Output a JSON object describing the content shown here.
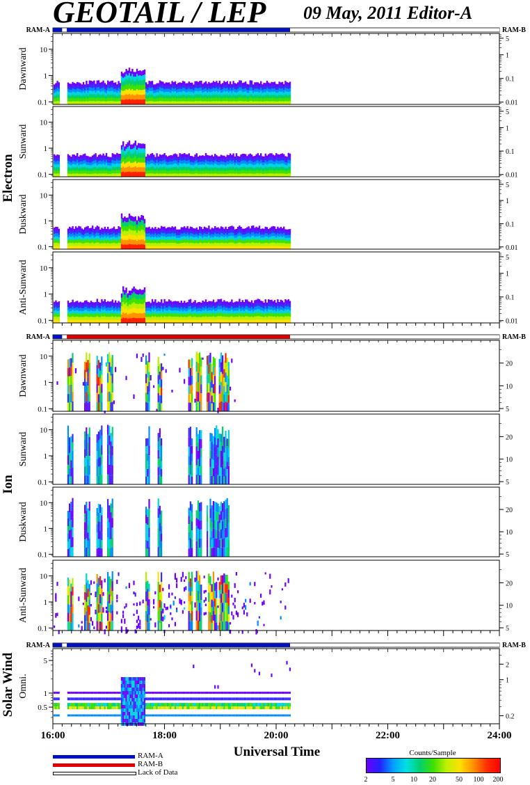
{
  "title": "GEOTAIL / LEP",
  "subtitle": "09 May, 2011   Editor-A",
  "x_axis_label": "Universal Time",
  "colors": {
    "ram_a": "#0010c8",
    "ram_b": "#e00000",
    "lack": "#ffffff"
  },
  "legend": [
    {
      "label": "RAM-A",
      "color": "#0010c8"
    },
    {
      "label": "RAM-B",
      "color": "#e00000"
    },
    {
      "label": "Lack of Data",
      "color": "#ffffff"
    }
  ],
  "colorbar": {
    "title": "Counts/Sample",
    "ticks": [
      "2",
      "5",
      "10",
      "20",
      "50",
      "100",
      "200"
    ]
  },
  "chart_data": {
    "type": "heatmap",
    "x_ticks": [
      "16:00",
      "18:00",
      "20:00",
      "22:00",
      "24:00"
    ],
    "xlim": [
      "16:00",
      "24:00"
    ],
    "data_end": "20:15",
    "groups": [
      {
        "name": "Electron",
        "ram_labels": [
          "RAM-A",
          "RAM-B"
        ],
        "status_segments": [
          {
            "start": "16:00",
            "end": "16:10",
            "mode": "RAM-A"
          },
          {
            "start": "16:10",
            "end": "16:15",
            "mode": "none"
          },
          {
            "start": "16:15",
            "end": "20:15",
            "mode": "RAM-A"
          },
          {
            "start": "20:15",
            "end": "24:00",
            "mode": "none"
          }
        ],
        "panels": [
          {
            "name": "Dawnward",
            "y_ticks": [
              "0.1",
              "1",
              "10"
            ],
            "y2_ticks": [
              "0.01",
              "0.1",
              "1",
              "5"
            ]
          },
          {
            "name": "Sunward",
            "y_ticks": [
              "0.1",
              "1",
              "10"
            ],
            "y2_ticks": [
              "0.01",
              "0.1",
              "1",
              "5"
            ]
          },
          {
            "name": "Duskward",
            "y_ticks": [
              "0.1",
              "1",
              "10"
            ],
            "y2_ticks": [
              "0.01",
              "0.1",
              "1",
              "5"
            ]
          },
          {
            "name": "Anti-Sunward",
            "y_ticks": [
              "0.1",
              "1",
              "10"
            ],
            "y2_ticks": [
              "0.01",
              "0.1",
              "1",
              "5"
            ]
          }
        ]
      },
      {
        "name": "Ion",
        "ram_labels": [
          "RAM-A",
          "RAM-B"
        ],
        "status_segments": [
          {
            "start": "16:00",
            "end": "16:10",
            "mode": "RAM-A"
          },
          {
            "start": "16:10",
            "end": "16:15",
            "mode": "none"
          },
          {
            "start": "16:15",
            "end": "20:15",
            "mode": "RAM-B"
          },
          {
            "start": "20:15",
            "end": "24:00",
            "mode": "none"
          }
        ],
        "panels": [
          {
            "name": "Dawnward",
            "y_ticks": [
              "0.1",
              "1",
              "10"
            ],
            "y2_ticks": [
              "5",
              "10",
              "20"
            ]
          },
          {
            "name": "Sunward",
            "y_ticks": [
              "0.1",
              "1",
              "10"
            ],
            "y2_ticks": [
              "5",
              "10",
              "20"
            ]
          },
          {
            "name": "Duskward",
            "y_ticks": [
              "0.1",
              "1",
              "10"
            ],
            "y2_ticks": [
              "5",
              "10",
              "20"
            ]
          },
          {
            "name": "Anti-Sunward",
            "y_ticks": [
              "0.1",
              "1",
              "10"
            ],
            "y2_ticks": [
              "5",
              "10",
              "20"
            ]
          }
        ]
      },
      {
        "name": "Solar Wind",
        "ram_labels": [
          "RAM-A",
          "RAM-B"
        ],
        "status_segments": [
          {
            "start": "16:00",
            "end": "16:10",
            "mode": "RAM-A"
          },
          {
            "start": "16:10",
            "end": "16:15",
            "mode": "none"
          },
          {
            "start": "16:15",
            "end": "20:15",
            "mode": "RAM-A"
          },
          {
            "start": "20:15",
            "end": "24:00",
            "mode": "none"
          }
        ],
        "panels": [
          {
            "name": "Omni.",
            "y_ticks": [
              "0.5",
              "1",
              "5"
            ],
            "y2_ticks": [
              "0.2",
              "1",
              "2"
            ]
          }
        ]
      }
    ]
  }
}
